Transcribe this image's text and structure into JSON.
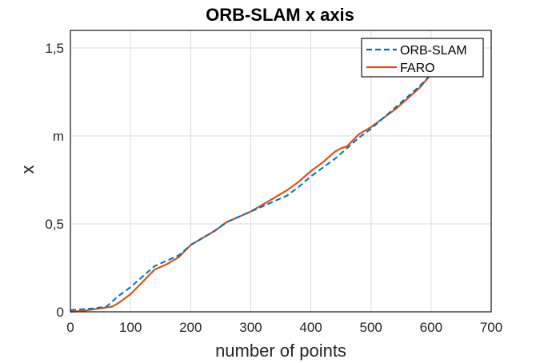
{
  "chart_data": {
    "type": "line",
    "title": "ORB-SLAM x axis",
    "xlabel": "number of points",
    "ylabel": "x",
    "xlim": [
      0,
      700
    ],
    "ylim": [
      0,
      1.6
    ],
    "grid": true,
    "legend_position": "top-right",
    "x_ticks": [
      0,
      100,
      200,
      300,
      400,
      500,
      600,
      700
    ],
    "x_tick_labels": [
      "0",
      "100",
      "200",
      "300",
      "400",
      "500",
      "600",
      "700"
    ],
    "y_ticks": [
      0,
      0.5,
      1.0,
      1.5
    ],
    "y_tick_labels": [
      "0",
      "0,5",
      "m",
      "1,5"
    ],
    "series": [
      {
        "name": "ORB-SLAM",
        "color": "#0072BD",
        "style": "dashed",
        "x": [
          0,
          20,
          40,
          60,
          70,
          80,
          100,
          120,
          140,
          160,
          180,
          200,
          220,
          240,
          260,
          280,
          300,
          320,
          340,
          360,
          380,
          400,
          420,
          440,
          460,
          480,
          500,
          520,
          540,
          560,
          580,
          600
        ],
        "y": [
          0.01,
          0.015,
          0.02,
          0.03,
          0.06,
          0.09,
          0.14,
          0.2,
          0.26,
          0.29,
          0.32,
          0.38,
          0.42,
          0.46,
          0.51,
          0.54,
          0.57,
          0.6,
          0.63,
          0.66,
          0.71,
          0.77,
          0.82,
          0.87,
          0.93,
          0.99,
          1.04,
          1.1,
          1.16,
          1.22,
          1.28,
          1.35
        ]
      },
      {
        "name": "FARO",
        "color": "#D95319",
        "style": "solid",
        "x": [
          0,
          20,
          40,
          60,
          70,
          80,
          100,
          120,
          140,
          160,
          180,
          200,
          220,
          240,
          260,
          280,
          300,
          320,
          340,
          360,
          380,
          400,
          420,
          440,
          450,
          460,
          480,
          500,
          520,
          540,
          560,
          580,
          600
        ],
        "y": [
          0.0,
          0.005,
          0.015,
          0.025,
          0.03,
          0.05,
          0.1,
          0.17,
          0.24,
          0.27,
          0.31,
          0.38,
          0.42,
          0.46,
          0.51,
          0.54,
          0.57,
          0.61,
          0.65,
          0.69,
          0.74,
          0.8,
          0.85,
          0.91,
          0.93,
          0.94,
          1.01,
          1.05,
          1.1,
          1.15,
          1.21,
          1.27,
          1.35
        ]
      }
    ]
  }
}
